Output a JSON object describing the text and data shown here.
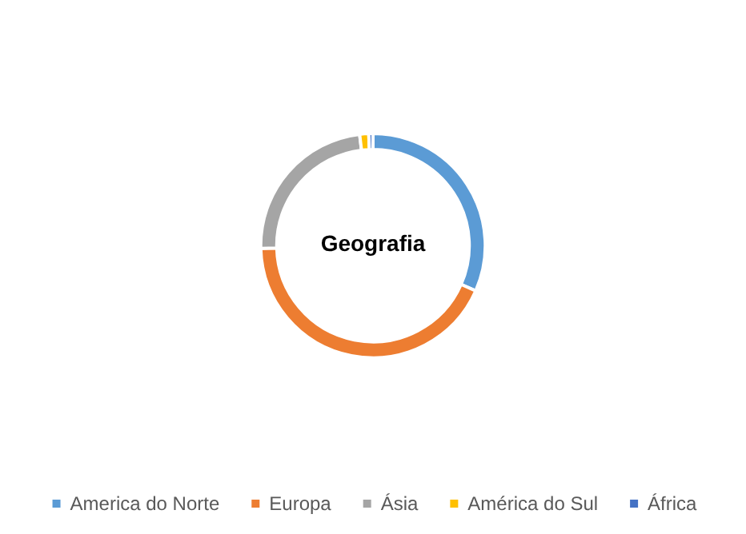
{
  "chart_data": {
    "type": "donut",
    "title": "Geografia",
    "categories": [
      "America do Norte",
      "Europa",
      "Ásia",
      "América do Sul",
      "África"
    ],
    "values": [
      31.6,
      43,
      23.5,
      1.3,
      0.6
    ],
    "colors": [
      "#5b9bd5",
      "#ed7d31",
      "#a5a5a5",
      "#ffc000",
      "#4472c4"
    ],
    "legend": "bottom"
  }
}
